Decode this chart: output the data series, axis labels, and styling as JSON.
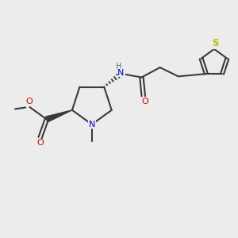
{
  "bg": "#ececec",
  "bc": "#3a3a3a",
  "Nc": "#0000dd",
  "Oc": "#dd0000",
  "Sc": "#bbbb00",
  "NHc": "#407878",
  "lw": 1.5,
  "fs": 7.0,
  "dpi": 100,
  "xlim": [
    0,
    10
  ],
  "ylim": [
    0,
    10
  ]
}
